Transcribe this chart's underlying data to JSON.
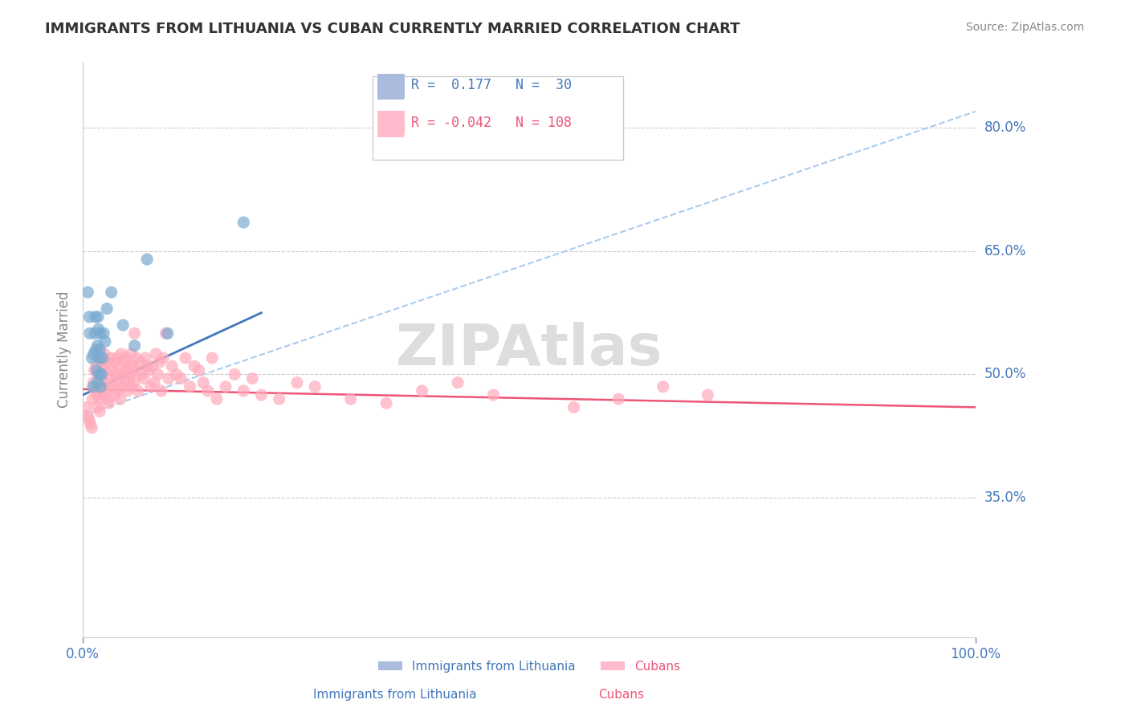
{
  "title": "IMMIGRANTS FROM LITHUANIA VS CUBAN CURRENTLY MARRIED CORRELATION CHART",
  "source": "Source: ZipAtlas.com",
  "xlabel": "",
  "ylabel": "Currently Married",
  "xlim": [
    0.0,
    100.0
  ],
  "ylim": [
    18.0,
    88.0
  ],
  "yticks": [
    35.0,
    50.0,
    65.0,
    80.0
  ],
  "xticks": [
    0.0,
    100.0
  ],
  "watermark": "ZIPAtlas",
  "legend_entries": [
    {
      "label": "R =  0.177   N =  30",
      "color": "#6699cc"
    },
    {
      "label": "R = -0.042   N = 108",
      "color": "#ff85a1"
    }
  ],
  "series_blue": {
    "name": "Immigrants from Lithuania",
    "color": "#7aaad0",
    "marker_color": "#7aaad0",
    "R": 0.177,
    "N": 30,
    "x": [
      0.56,
      0.74,
      0.79,
      1.02,
      1.15,
      1.22,
      1.35,
      1.4,
      1.45,
      1.55,
      1.6,
      1.65,
      1.7,
      1.75,
      1.8,
      1.85,
      1.9,
      1.95,
      2.0,
      2.1,
      2.2,
      2.35,
      2.5,
      2.7,
      3.2,
      4.5,
      5.8,
      7.2,
      9.5,
      18.0
    ],
    "y": [
      60.0,
      57.0,
      55.0,
      52.0,
      48.5,
      52.5,
      55.0,
      57.0,
      53.0,
      50.5,
      49.0,
      53.5,
      57.0,
      55.5,
      52.0,
      50.0,
      53.0,
      55.0,
      48.5,
      50.0,
      52.0,
      55.0,
      54.0,
      58.0,
      60.0,
      56.0,
      53.5,
      64.0,
      55.0,
      68.5
    ]
  },
  "series_pink": {
    "name": "Cubans",
    "color": "#ffaabb",
    "marker_color": "#ffaabb",
    "R": -0.042,
    "N": 108,
    "x": [
      0.4,
      0.55,
      0.7,
      0.85,
      1.0,
      1.1,
      1.2,
      1.3,
      1.4,
      1.5,
      1.6,
      1.65,
      1.7,
      1.75,
      1.8,
      1.85,
      1.9,
      1.95,
      2.0,
      2.05,
      2.1,
      2.15,
      2.2,
      2.25,
      2.3,
      2.35,
      2.4,
      2.5,
      2.6,
      2.7,
      2.8,
      2.9,
      3.0,
      3.1,
      3.2,
      3.3,
      3.4,
      3.5,
      3.6,
      3.7,
      3.8,
      3.9,
      4.0,
      4.1,
      4.2,
      4.3,
      4.4,
      4.5,
      4.6,
      4.7,
      4.8,
      4.9,
      5.0,
      5.1,
      5.2,
      5.3,
      5.4,
      5.5,
      5.6,
      5.7,
      5.8,
      5.9,
      6.0,
      6.2,
      6.4,
      6.6,
      6.8,
      7.0,
      7.2,
      7.4,
      7.6,
      7.8,
      8.0,
      8.2,
      8.4,
      8.6,
      8.8,
      9.0,
      9.3,
      9.6,
      10.0,
      10.5,
      11.0,
      11.5,
      12.0,
      12.5,
      13.0,
      13.5,
      14.0,
      14.5,
      15.0,
      16.0,
      17.0,
      18.0,
      19.0,
      20.0,
      22.0,
      24.0,
      26.0,
      30.0,
      34.0,
      38.0,
      42.0,
      46.0,
      55.0,
      60.0,
      65.0,
      70.0
    ],
    "y": [
      46.0,
      45.0,
      44.5,
      44.0,
      43.5,
      47.0,
      49.0,
      50.5,
      48.0,
      51.0,
      47.5,
      46.0,
      50.0,
      48.5,
      52.0,
      47.0,
      45.5,
      49.0,
      50.0,
      48.0,
      52.0,
      49.5,
      51.0,
      50.0,
      47.5,
      49.0,
      52.5,
      50.5,
      48.0,
      51.5,
      47.0,
      46.5,
      50.0,
      52.0,
      48.5,
      50.5,
      49.0,
      51.5,
      47.5,
      50.0,
      52.0,
      48.0,
      51.0,
      49.5,
      47.0,
      52.5,
      50.0,
      48.5,
      51.5,
      49.0,
      52.0,
      50.5,
      48.0,
      51.0,
      49.5,
      50.0,
      52.5,
      48.5,
      51.0,
      49.0,
      55.0,
      50.5,
      52.0,
      48.0,
      51.5,
      50.0,
      49.5,
      52.0,
      51.0,
      50.5,
      48.5,
      51.0,
      49.0,
      52.5,
      50.0,
      51.5,
      48.0,
      52.0,
      55.0,
      49.5,
      51.0,
      50.0,
      49.5,
      52.0,
      48.5,
      51.0,
      50.5,
      49.0,
      48.0,
      52.0,
      47.0,
      48.5,
      50.0,
      48.0,
      49.5,
      47.5,
      47.0,
      49.0,
      48.5,
      47.0,
      46.5,
      48.0,
      49.0,
      47.5,
      46.0,
      47.0,
      48.5,
      47.5
    ]
  },
  "blue_line": {
    "x_start": 0.0,
    "y_start": 47.5,
    "x_end": 20.0,
    "y_end": 57.5,
    "color": "#4477bb",
    "linewidth": 2.0
  },
  "blue_dashed_line": {
    "x_start": 0.0,
    "y_start": 45.0,
    "x_end": 100.0,
    "y_end": 82.0,
    "color": "#aaccee",
    "linewidth": 1.5,
    "linestyle": "--"
  },
  "pink_line": {
    "x_start": 0.0,
    "y_start": 48.2,
    "x_end": 100.0,
    "y_end": 46.0,
    "color": "#ee5577",
    "linewidth": 1.8
  },
  "grid_color": "#cccccc",
  "grid_linestyle": "--",
  "background_color": "#ffffff",
  "title_color": "#333333",
  "title_fontsize": 13,
  "axis_label_color": "#4477bb",
  "tick_label_color": "#4477bb",
  "source_color": "#888888",
  "watermark_color": "#dddddd",
  "watermark_fontsize": 52,
  "legend_box_colors": [
    "#aabbdd",
    "#ffbbcc"
  ]
}
